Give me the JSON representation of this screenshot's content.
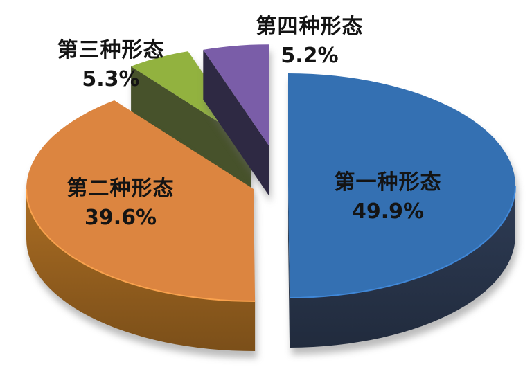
{
  "chart_data": {
    "type": "pie",
    "style": "3d-exploded",
    "title": "",
    "direction": "clockwise",
    "start_angle_deg": 0,
    "total": 100,
    "background_color": "#FFFFFF",
    "label_text_color": "#141414",
    "legend": "none",
    "slices": [
      {
        "label": "第一种形态",
        "value": 49.9,
        "display": "49.9%",
        "color": "#3470B2",
        "side_color": "#28354B",
        "label_position": "inside-right"
      },
      {
        "label": "第二种形态",
        "value": 39.6,
        "display": "39.6%",
        "color": "#DC8540",
        "side_color": "#96601F",
        "label_position": "inside-left"
      },
      {
        "label": "第三种形态",
        "value": 5.3,
        "display": "5.3%",
        "color": "#92B23F",
        "side_color": "#47522B",
        "label_position": "outside-top-left"
      },
      {
        "label": "第四种形态",
        "value": 5.2,
        "display": "5.2%",
        "color": "#7A5DA8",
        "side_color": "#2E2943",
        "label_position": "outside-top"
      }
    ]
  }
}
